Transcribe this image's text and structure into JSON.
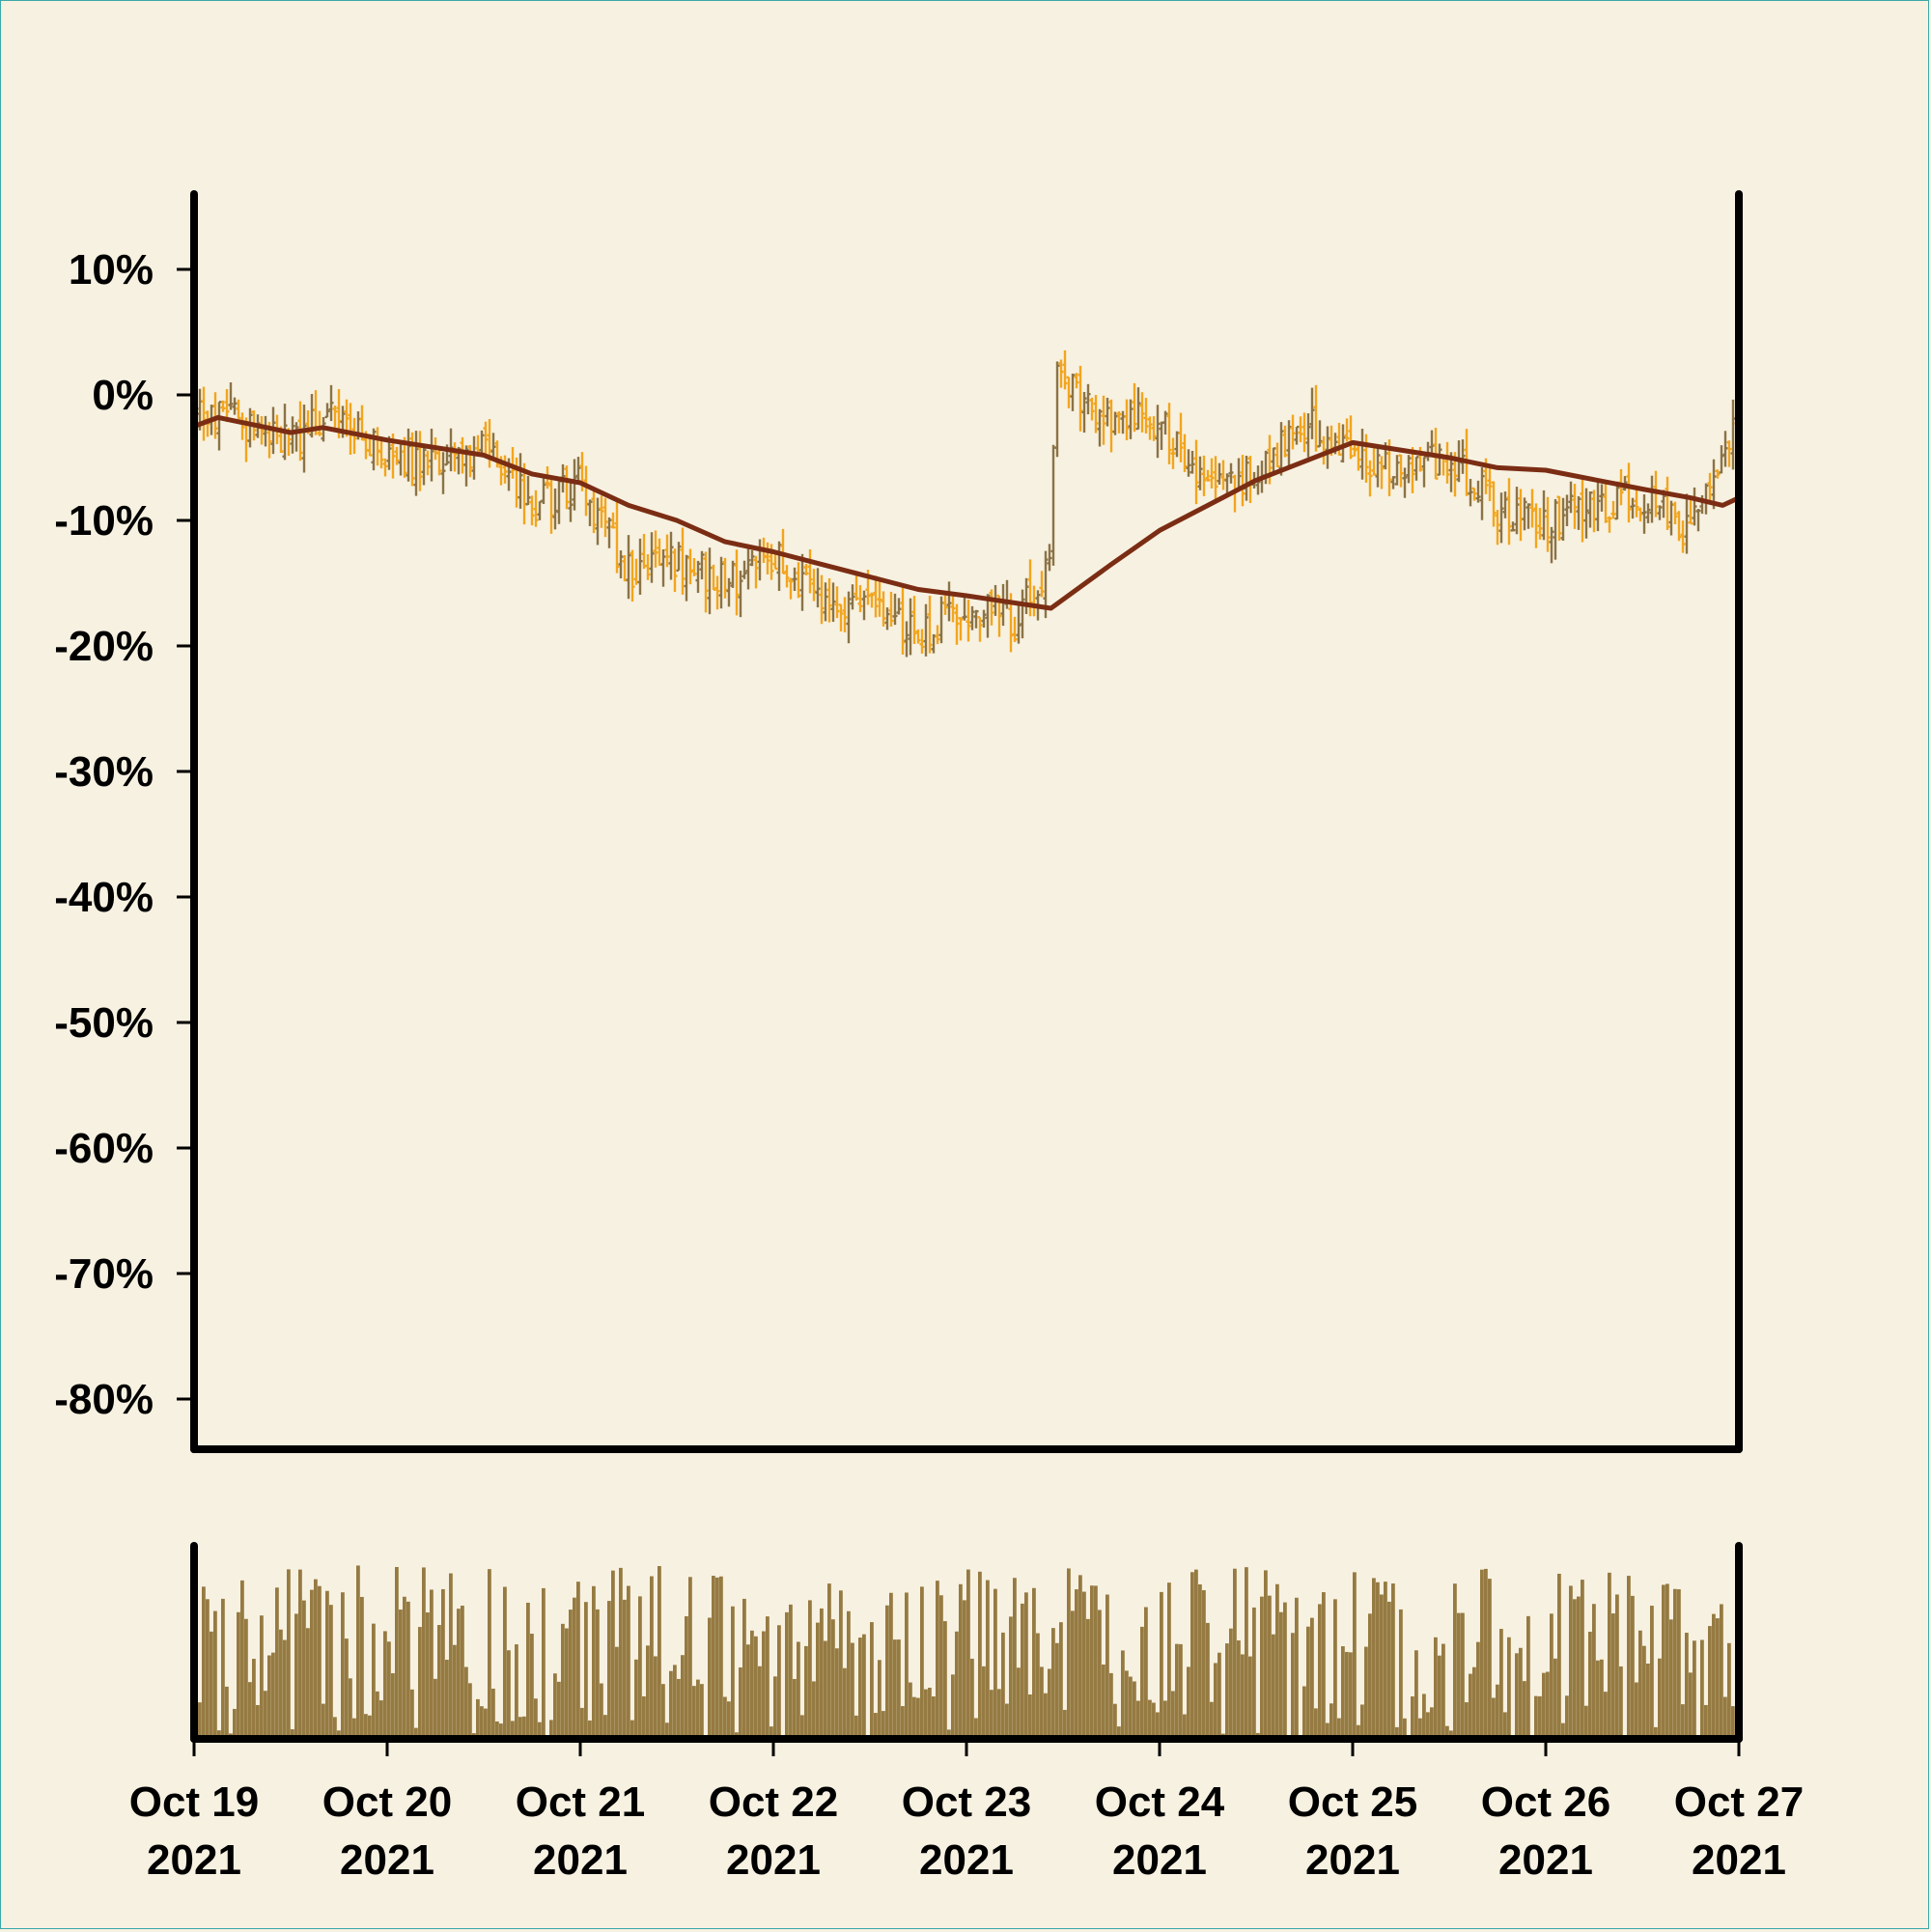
{
  "colors": {
    "background": "#f7f1e1",
    "up": "#8b7346",
    "down": "#f2a51e",
    "moving_average": "#7b2d14",
    "volume": "#957a42",
    "axis": "#000000"
  },
  "chart_data": {
    "type": "ohlc",
    "ylim": [
      -84,
      16
    ],
    "y_ticks": [
      10,
      0,
      -10,
      -20,
      -30,
      -40,
      -50,
      -60,
      -70,
      -80
    ],
    "y_tick_labels": [
      "10%",
      "0%",
      "-10%",
      "-20%",
      "-30%",
      "-40%",
      "-50%",
      "-60%",
      "-70%",
      "-80%"
    ],
    "x_ticks": [
      {
        "date": "2021-10-19",
        "label": "Oct 19",
        "year": "2021"
      },
      {
        "date": "2021-10-20",
        "label": "Oct 20",
        "year": "2021"
      },
      {
        "date": "2021-10-21",
        "label": "Oct 21",
        "year": "2021"
      },
      {
        "date": "2021-10-22",
        "label": "Oct 22",
        "year": "2021"
      },
      {
        "date": "2021-10-23",
        "label": "Oct 23",
        "year": "2021"
      },
      {
        "date": "2021-10-24",
        "label": "Oct 24",
        "year": "2021"
      },
      {
        "date": "2021-10-25",
        "label": "Oct 25",
        "year": "2021"
      },
      {
        "date": "2021-10-26",
        "label": "Oct 26",
        "year": "2021"
      },
      {
        "date": "2021-10-27",
        "label": "Oct 27",
        "year": "2021"
      }
    ],
    "x_range": [
      "2021-10-19",
      "2021-10-27"
    ],
    "price_path": [
      [
        "2021-10-19T00:00",
        -2
      ],
      [
        "2021-10-19T06:00",
        -2
      ],
      [
        "2021-10-19T12:00",
        -4
      ],
      [
        "2021-10-19T18:00",
        -1
      ],
      [
        "2021-10-20T00:00",
        -5
      ],
      [
        "2021-10-20T06:00",
        -6
      ],
      [
        "2021-10-20T12:00",
        -4
      ],
      [
        "2021-10-20T18:00",
        -9
      ],
      [
        "2021-10-21T00:00",
        -7
      ],
      [
        "2021-10-21T06:00",
        -14
      ],
      [
        "2021-10-21T12:00",
        -13
      ],
      [
        "2021-10-21T18:00",
        -15
      ],
      [
        "2021-10-22T00:00",
        -13
      ],
      [
        "2021-10-22T06:00",
        -16
      ],
      [
        "2021-10-22T12:00",
        -17
      ],
      [
        "2021-10-22T18:00",
        -19
      ],
      [
        "2021-10-23T00:00",
        -17
      ],
      [
        "2021-10-23T06:00",
        -18
      ],
      [
        "2021-10-23T10:30",
        -14
      ],
      [
        "2021-10-23T11:00",
        2
      ],
      [
        "2021-10-23T18:00",
        -2
      ],
      [
        "2021-10-24T00:00",
        -2
      ],
      [
        "2021-10-24T06:00",
        -8
      ],
      [
        "2021-10-24T12:00",
        -6
      ],
      [
        "2021-10-24T18:00",
        -2
      ],
      [
        "2021-10-25T00:00",
        -5
      ],
      [
        "2021-10-25T06:00",
        -6
      ],
      [
        "2021-10-25T12:00",
        -5
      ],
      [
        "2021-10-25T18:00",
        -9
      ],
      [
        "2021-10-26T00:00",
        -10
      ],
      [
        "2021-10-26T06:00",
        -9
      ],
      [
        "2021-10-26T12:00",
        -8
      ],
      [
        "2021-10-26T18:00",
        -11
      ],
      [
        "2021-10-27T00:00",
        -1
      ]
    ],
    "moving_average": [
      [
        "2021-10-19T00:00",
        -2.5
      ],
      [
        "2021-10-19T03:00",
        -1.8
      ],
      [
        "2021-10-19T12:00",
        -3.0
      ],
      [
        "2021-10-19T16:00",
        -2.6
      ],
      [
        "2021-10-20T00:00",
        -3.6
      ],
      [
        "2021-10-20T12:00",
        -4.8
      ],
      [
        "2021-10-20T18:00",
        -6.3
      ],
      [
        "2021-10-21T00:00",
        -7.0
      ],
      [
        "2021-10-21T06:00",
        -8.8
      ],
      [
        "2021-10-21T12:00",
        -10.0
      ],
      [
        "2021-10-21T18:00",
        -11.7
      ],
      [
        "2021-10-22T00:00",
        -12.5
      ],
      [
        "2021-10-22T12:00",
        -14.5
      ],
      [
        "2021-10-22T18:00",
        -15.5
      ],
      [
        "2021-10-23T00:00",
        -16.0
      ],
      [
        "2021-10-23T10:30",
        -17.0
      ],
      [
        "2021-10-23T18:00",
        -13.5
      ],
      [
        "2021-10-24T00:00",
        -10.8
      ],
      [
        "2021-10-24T12:00",
        -6.8
      ],
      [
        "2021-10-25T00:00",
        -3.8
      ],
      [
        "2021-10-25T12:00",
        -5.0
      ],
      [
        "2021-10-25T18:00",
        -5.8
      ],
      [
        "2021-10-26T00:00",
        -6.0
      ],
      [
        "2021-10-26T12:00",
        -7.5
      ],
      [
        "2021-10-26T18:00",
        -8.2
      ],
      [
        "2021-10-26T22:00",
        -8.8
      ],
      [
        "2021-10-27T00:00",
        -8.2
      ]
    ],
    "bar_count": 400,
    "volume_relative_range": [
      0.0,
      1.0
    ]
  }
}
